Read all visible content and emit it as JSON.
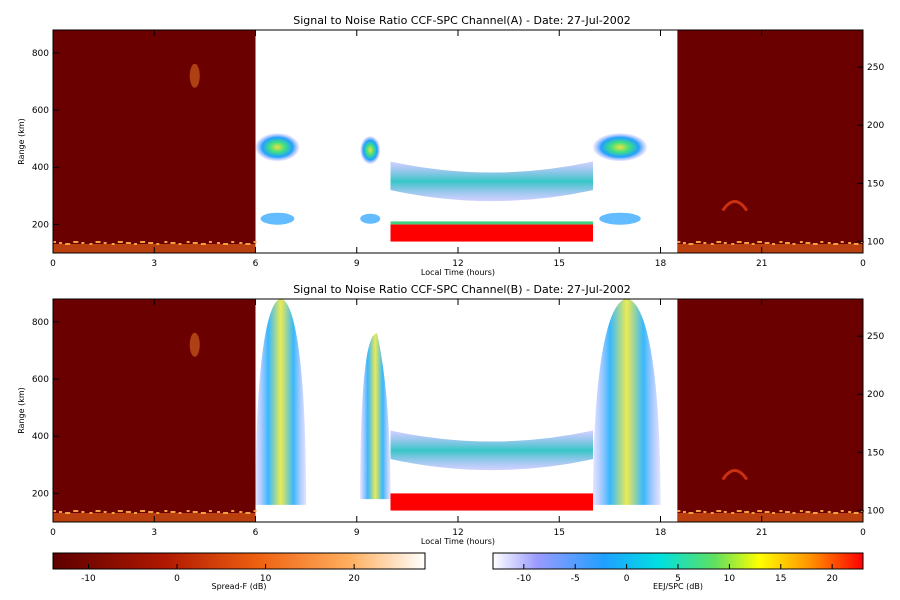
{
  "chart_data": [
    {
      "type": "heatmap",
      "title": "Signal to Noise Ratio CCF-SPC Channel(A) - Date: 27-Jul-2002",
      "xlabel": "Local Time (hours)",
      "ylabel": "Range (km)",
      "xlim": [
        0,
        24
      ],
      "ylim": [
        100,
        880
      ],
      "xticks": [
        "0",
        "3",
        "6",
        "9",
        "12",
        "15",
        "18",
        "21",
        "0"
      ],
      "yticks": [
        "200",
        "400",
        "600",
        "800"
      ],
      "y2ticks": [
        "100",
        "150",
        "200",
        "250"
      ],
      "y2lim": [
        90,
        282
      ],
      "regions": [
        {
          "name": "night-spread-f",
          "x": [
            0,
            6
          ],
          "colorbar": "Spread-F"
        },
        {
          "name": "day-ejspc",
          "x": [
            6,
            18.5
          ],
          "colorbar": "EEJ/SPC"
        },
        {
          "name": "night-spread-f",
          "x": [
            18.5,
            24
          ],
          "colorbar": "Spread-F"
        }
      ],
      "features": [
        {
          "desc": "EEJ strong echo",
          "x": [
            10,
            16
          ],
          "range": [
            140,
            200
          ],
          "snr_db": 20
        },
        {
          "desc": "SPC echo",
          "x": [
            10,
            16
          ],
          "range": [
            320,
            420
          ],
          "snr_db": 5
        },
        {
          "desc": "morning echo",
          "x": [
            6,
            7.3
          ],
          "range": [
            420,
            520
          ],
          "snr_db": 8
        },
        {
          "desc": "afternoon echo",
          "x": [
            16,
            17.6
          ],
          "range": [
            420,
            520
          ],
          "snr_db": 8
        }
      ]
    },
    {
      "type": "heatmap",
      "title": "Signal to Noise Ratio CCF-SPC Channel(B) - Date: 27-Jul-2002",
      "xlabel": "Local Time (hours)",
      "ylabel": "Range (km)",
      "xlim": [
        0,
        24
      ],
      "ylim": [
        100,
        880
      ],
      "xticks": [
        "0",
        "3",
        "6",
        "9",
        "12",
        "15",
        "18",
        "21",
        "0"
      ],
      "yticks": [
        "200",
        "400",
        "600",
        "800"
      ],
      "y2ticks": [
        "100",
        "150",
        "200",
        "250"
      ],
      "y2lim": [
        90,
        282
      ],
      "features": [
        {
          "desc": "EEJ strong echo",
          "x": [
            10,
            16
          ],
          "range": [
            140,
            200
          ],
          "snr_db": 20
        },
        {
          "desc": "SPC echo",
          "x": [
            10,
            16
          ],
          "range": [
            320,
            420
          ],
          "snr_db": 3
        },
        {
          "desc": "morning plume",
          "x": [
            6,
            7.5
          ],
          "range": [
            160,
            880
          ],
          "snr_db": 10
        },
        {
          "desc": "afternoon plume",
          "x": [
            16,
            18
          ],
          "range": [
            160,
            880
          ],
          "snr_db": 10
        }
      ]
    }
  ],
  "colorbars": [
    {
      "label": "Spread-F (dB)",
      "ticks": [
        "-10",
        "0",
        "10",
        "20"
      ],
      "range": [
        -14,
        28
      ],
      "colors": [
        "#6a0000",
        "#c83000",
        "#ff8c2a",
        "#ffd8a0",
        "#ffffff"
      ]
    },
    {
      "label": "EEJ/SPC (dB)",
      "ticks": [
        "-10",
        "-5",
        "0",
        "5",
        "10",
        "15",
        "20"
      ],
      "range": [
        -13,
        23
      ],
      "colors": [
        "#ffffff",
        "#7a7aff",
        "#00c8ff",
        "#40e080",
        "#ffff00",
        "#ff9000",
        "#ff0000"
      ]
    }
  ],
  "colors": {
    "night_bg": "#6b0000",
    "eej": "#ff0000"
  }
}
